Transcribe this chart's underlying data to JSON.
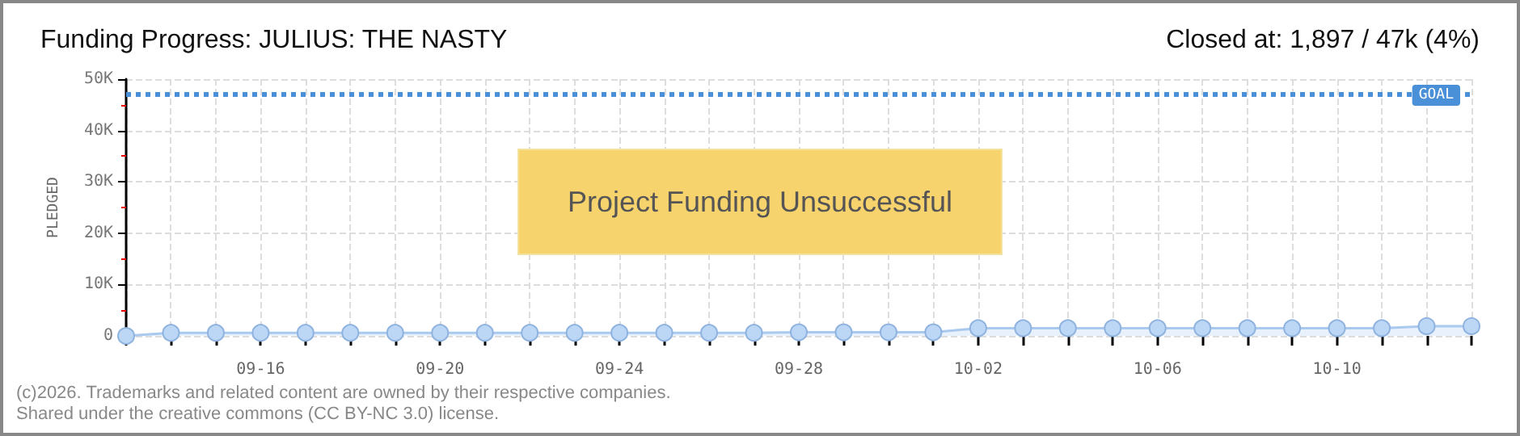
{
  "chart_data": {
    "type": "area",
    "title": "Funding Progress: JULIUS: THE NASTY",
    "subtitle": "Closed at: 1,897 / 47k (4%)",
    "ylabel": "PLEDGED",
    "categories": [
      null,
      null,
      null,
      "09-16",
      null,
      null,
      null,
      "09-20",
      null,
      null,
      null,
      "09-24",
      null,
      null,
      null,
      "09-28",
      null,
      null,
      null,
      "10-02",
      null,
      null,
      null,
      "10-06",
      null,
      null,
      null,
      "10-10",
      null,
      null,
      null
    ],
    "series": [
      {
        "color": "#a9c9ee",
        "values": [
          0,
          600,
          600,
          600,
          600,
          600,
          600,
          600,
          600,
          600,
          600,
          600,
          600,
          600,
          600,
          700,
          700,
          700,
          700,
          1500,
          1500,
          1500,
          1500,
          1500,
          1500,
          1500,
          1500,
          1500,
          1500,
          1900,
          1900
        ]
      }
    ],
    "ylim": [
      0,
      50000
    ],
    "yticks": [
      {
        "value": 0,
        "label": "0"
      },
      {
        "value": 10000,
        "label": "10K"
      },
      {
        "value": 20000,
        "label": "20K"
      },
      {
        "value": 30000,
        "label": "30K"
      },
      {
        "value": 40000,
        "label": "40K"
      },
      {
        "value": 50000,
        "label": "50K"
      }
    ],
    "ref_lines": [
      {
        "axis": "y",
        "value": 47000,
        "label": "GOAL",
        "color": "#4a90d9",
        "line_style": "dotted"
      }
    ],
    "annotations": [
      "Project Funding Unsuccessful",
      "(c)2026. Trademarks and related content are owned by their respective companies.",
      "Shared under the creative commons (CC BY-NC 3.0) license."
    ],
    "grid": true,
    "marker": "circle"
  }
}
